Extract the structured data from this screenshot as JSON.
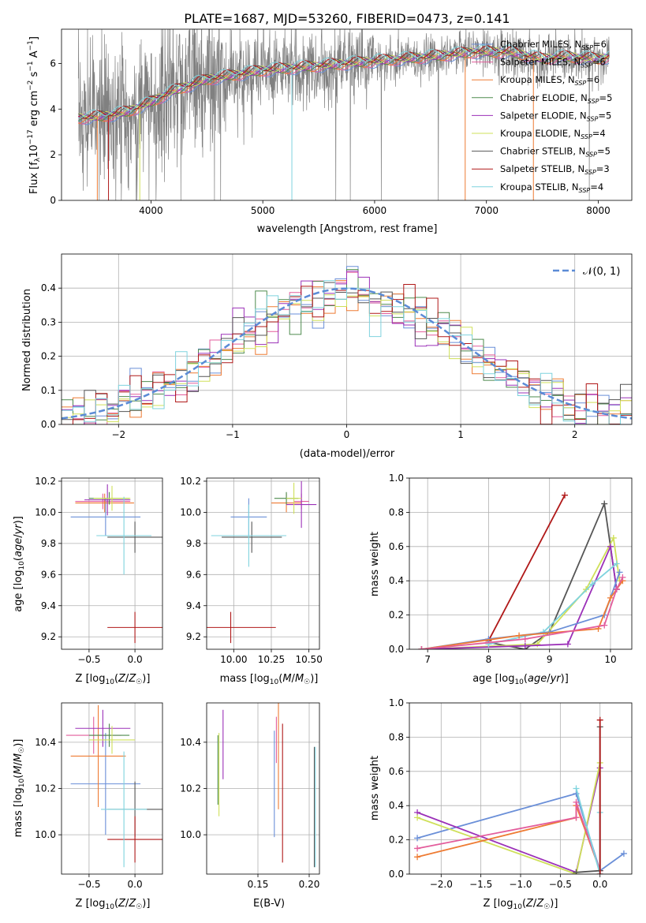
{
  "title": "PLATE=1687, MJD=53260, FIBERID=0473, z=0.141",
  "colors": {
    "Chabrier MILES": "#6a8fd8",
    "Salpeter MILES": "#e35d9c",
    "Kroupa MILES": "#ee7b33",
    "Chabrier ELODIE": "#4e8b4e",
    "Salpeter ELODIE": "#9b30b8",
    "Kroupa ELODIE": "#cfe05a",
    "Chabrier STELIB": "#555555",
    "Salpeter STELIB": "#b01818",
    "Kroupa STELIB": "#7fd3de",
    "data": "#808080",
    "normal": "#5b8bd6"
  },
  "chart_data": [
    {
      "type": "line",
      "name": "spectrum",
      "xlabel": "wavelength [Angstrom, rest frame]",
      "ylabel": "Flux [f_λ 10^-17 erg cm^-2 s^-1 A^-1]",
      "xlim": [
        3200,
        8300
      ],
      "ylim": [
        0,
        7.5
      ],
      "xticks": [
        "4000",
        "5000",
        "6000",
        "7000",
        "8000"
      ],
      "yticks": [
        "0",
        "2",
        "4",
        "6"
      ],
      "legend_position": "right",
      "series": [
        {
          "name": "Chabrier MILES, N_SSP=6"
        },
        {
          "name": "Salpeter MILES, N_SSP=6"
        },
        {
          "name": "Kroupa MILES, N_SSP=6"
        },
        {
          "name": "Chabrier ELODIE, N_SSP=5"
        },
        {
          "name": "Salpeter ELODIE, N_SSP=5"
        },
        {
          "name": "Kroupa ELODIE, N_SSP=4"
        },
        {
          "name": "Chabrier STELIB, N_SSP=5"
        },
        {
          "name": "Salpeter STELIB, N_SSP=3"
        },
        {
          "name": "Kroupa STELIB, N_SSP=4"
        }
      ],
      "continuum_x": [
        3350,
        3600,
        3800,
        4000,
        4200,
        4500,
        5000,
        5500,
        6000,
        6500,
        6900,
        7200,
        7500,
        7700,
        8000,
        8100
      ],
      "continuum_y": [
        3.6,
        3.7,
        3.9,
        4.3,
        4.8,
        5.3,
        5.7,
        5.9,
        6.1,
        6.3,
        6.5,
        6.5,
        6.2,
        6.3,
        6.2,
        6.3
      ]
    },
    {
      "type": "histogram",
      "name": "residuals",
      "xlabel": "(data-model)/error",
      "ylabel": "Normed distribution",
      "xlim": [
        -2.5,
        2.5
      ],
      "ylim": [
        0,
        0.5
      ],
      "xticks": [
        "−2",
        "−1",
        "0",
        "1",
        "2"
      ],
      "yticks": [
        "0.0",
        "0.1",
        "0.2",
        "0.3",
        "0.4"
      ],
      "legend": [
        "𝒩(0, 1)"
      ],
      "bin_width": 0.1
    },
    {
      "type": "scatter",
      "name": "age-vs-Z",
      "xlabel": "Z [log10(Z/Z☉)]",
      "ylabel": "age  [log10(age/yr)]",
      "xlim": [
        -0.8,
        0.3
      ],
      "ylim": [
        9.12,
        10.22
      ],
      "xticks": [
        "−0.5",
        "0.0"
      ],
      "yticks": [
        "9.2",
        "9.4",
        "9.6",
        "9.8",
        "10.0",
        "10.2"
      ],
      "points": [
        {
          "model": "Chabrier MILES",
          "x": -0.32,
          "xerr": 0.38,
          "y": 9.97,
          "yerr": 0.12
        },
        {
          "model": "Salpeter MILES",
          "x": -0.35,
          "xerr": 0.3,
          "y": 10.07,
          "yerr": 0.05
        },
        {
          "model": "Kroupa MILES",
          "x": -0.33,
          "xerr": 0.32,
          "y": 10.06,
          "yerr": 0.06
        },
        {
          "model": "Chabrier ELODIE",
          "x": -0.28,
          "xerr": 0.22,
          "y": 10.09,
          "yerr": 0.04
        },
        {
          "model": "Salpeter ELODIE",
          "x": -0.3,
          "xerr": 0.25,
          "y": 10.08,
          "yerr": 0.1
        },
        {
          "model": "Kroupa ELODIE",
          "x": -0.25,
          "xerr": 0.2,
          "y": 10.09,
          "yerr": 0.08
        },
        {
          "model": "Chabrier STELIB",
          "x": 0.0,
          "xerr": 0.3,
          "y": 9.84,
          "yerr": 0.1
        },
        {
          "model": "Salpeter STELIB",
          "x": 0.0,
          "xerr": 0.3,
          "y": 9.26,
          "yerr": 0.1
        },
        {
          "model": "Kroupa STELIB",
          "x": -0.12,
          "xerr": 0.3,
          "y": 9.85,
          "yerr": 0.25
        }
      ]
    },
    {
      "type": "scatter",
      "name": "age-vs-mass",
      "xlabel": "mass [log10(M/M☉)]",
      "ylabel": "",
      "xlim": [
        9.82,
        10.57
      ],
      "ylim": [
        9.12,
        10.22
      ],
      "xticks": [
        "10.00",
        "10.25",
        "10.50"
      ],
      "yticks": [
        "9.2",
        "9.4",
        "9.6",
        "9.8",
        "10.0",
        "10.2"
      ],
      "points": [
        {
          "model": "Chabrier MILES",
          "x": 10.1,
          "xerr": 0.12,
          "y": 9.97,
          "yerr": 0.12
        },
        {
          "model": "Salpeter MILES",
          "x": 10.45,
          "xerr": 0.05,
          "y": 10.07,
          "yerr": 0.05
        },
        {
          "model": "Kroupa MILES",
          "x": 10.35,
          "xerr": 0.1,
          "y": 10.06,
          "yerr": 0.06
        },
        {
          "model": "Chabrier ELODIE",
          "x": 10.35,
          "xerr": 0.08,
          "y": 10.09,
          "yerr": 0.04
        },
        {
          "model": "Salpeter ELODIE",
          "x": 10.45,
          "xerr": 0.1,
          "y": 10.05,
          "yerr": 0.15
        },
        {
          "model": "Kroupa ELODIE",
          "x": 10.4,
          "xerr": 0.05,
          "y": 10.09,
          "yerr": 0.1
        },
        {
          "model": "Chabrier STELIB",
          "x": 10.12,
          "xerr": 0.2,
          "y": 9.84,
          "yerr": 0.1
        },
        {
          "model": "Salpeter STELIB",
          "x": 9.98,
          "xerr": 0.3,
          "y": 9.26,
          "yerr": 0.1
        },
        {
          "model": "Kroupa STELIB",
          "x": 10.1,
          "xerr": 0.25,
          "y": 9.85,
          "yerr": 0.2
        }
      ]
    },
    {
      "type": "line",
      "name": "mass-weight-vs-age",
      "xlabel": "age  [log10(age/yr)]",
      "ylabel": "mass weight",
      "xlim": [
        6.7,
        10.35
      ],
      "ylim": [
        0,
        1.0
      ],
      "xticks": [
        "7",
        "8",
        "9",
        "10"
      ],
      "yticks": [
        "0.0",
        "0.2",
        "0.4",
        "0.6",
        "0.8",
        "1.0"
      ],
      "series": [
        {
          "name": "Salpeter STELIB",
          "x": [
            8.0,
            9.25
          ],
          "y": [
            0.05,
            0.9
          ]
        },
        {
          "name": "Chabrier STELIB",
          "x": [
            8.0,
            8.6,
            9.0,
            9.9,
            10.1
          ],
          "y": [
            0.04,
            0.0,
            0.1,
            0.85,
            0.35
          ]
        },
        {
          "name": "Kroupa ELODIE",
          "x": [
            6.9,
            8.8,
            9.6,
            10.05,
            10.15
          ],
          "y": [
            0.0,
            0.03,
            0.35,
            0.65,
            0.4
          ]
        },
        {
          "name": "Salpeter ELODIE",
          "x": [
            6.9,
            8.6,
            9.3,
            10.0,
            10.1
          ],
          "y": [
            0.0,
            0.02,
            0.03,
            0.6,
            0.35
          ]
        },
        {
          "name": "Kroupa STELIB",
          "x": [
            8.0,
            8.9,
            9.7,
            10.1
          ],
          "y": [
            0.03,
            0.1,
            0.38,
            0.5
          ]
        },
        {
          "name": "Chabrier MILES",
          "x": [
            6.9,
            8.0,
            9.0,
            9.9,
            10.15
          ],
          "y": [
            0.0,
            0.06,
            0.1,
            0.2,
            0.45
          ]
        },
        {
          "name": "Kroupa MILES",
          "x": [
            6.9,
            8.5,
            9.8,
            10.0,
            10.2
          ],
          "y": [
            0.0,
            0.08,
            0.12,
            0.3,
            0.4
          ]
        },
        {
          "name": "Salpeter MILES",
          "x": [
            6.9,
            8.6,
            9.9,
            10.1,
            10.2
          ],
          "y": [
            0.0,
            0.06,
            0.14,
            0.35,
            0.42
          ]
        }
      ]
    },
    {
      "type": "scatter",
      "name": "mass-vs-Z",
      "xlabel": "Z [log10(Z/Z☉)]",
      "ylabel": "mass [log10(M/M☉)]",
      "xlim": [
        -0.8,
        0.3
      ],
      "ylim": [
        9.83,
        10.57
      ],
      "xticks": [
        "−0.5",
        "0.0"
      ],
      "yticks": [
        "10.0",
        "10.2",
        "10.4"
      ],
      "points": [
        {
          "model": "Chabrier MILES",
          "x": -0.32,
          "xerr": 0.38,
          "y": 10.22,
          "yerr": 0.22
        },
        {
          "model": "Salpeter MILES",
          "x": -0.45,
          "xerr": 0.3,
          "y": 10.43,
          "yerr": 0.08
        },
        {
          "model": "Kroupa MILES",
          "x": -0.4,
          "xerr": 0.3,
          "y": 10.34,
          "yerr": 0.22
        },
        {
          "model": "Chabrier ELODIE",
          "x": -0.28,
          "xerr": 0.22,
          "y": 10.43,
          "yerr": 0.05
        },
        {
          "model": "Salpeter ELODIE",
          "x": -0.35,
          "xerr": 0.3,
          "y": 10.46,
          "yerr": 0.08
        },
        {
          "model": "Kroupa ELODIE",
          "x": -0.25,
          "xerr": 0.25,
          "y": 10.41,
          "yerr": 0.06
        },
        {
          "model": "Chabrier STELIB",
          "x": 0.0,
          "xerr": 0.3,
          "y": 10.11,
          "yerr": 0.12
        },
        {
          "model": "Salpeter STELIB",
          "x": 0.0,
          "xerr": 0.3,
          "y": 9.98,
          "yerr": 0.1
        },
        {
          "model": "Kroupa STELIB",
          "x": -0.12,
          "xerr": 0.25,
          "y": 10.11,
          "yerr": 0.25
        }
      ]
    },
    {
      "type": "scatter",
      "name": "mass-vs-EBV",
      "xlabel": "E(B-V)",
      "ylabel": "",
      "xlim": [
        0.1,
        0.21
      ],
      "ylim": [
        9.83,
        10.57
      ],
      "xticks": [
        "0.15",
        "0.20"
      ],
      "yticks": [
        "10.0",
        "10.2",
        "10.4"
      ],
      "points": [
        {
          "model": "Chabrier ELODIE",
          "x": 0.111,
          "yerr": 0.15,
          "y": 10.28
        },
        {
          "model": "Kroupa ELODIE",
          "x": 0.112,
          "yerr": 0.18,
          "y": 10.26
        },
        {
          "model": "Salpeter ELODIE",
          "x": 0.116,
          "yerr": 0.15,
          "y": 10.39
        },
        {
          "model": "Chabrier MILES",
          "x": 0.166,
          "yerr": 0.23,
          "y": 10.22
        },
        {
          "model": "Salpeter MILES",
          "x": 0.168,
          "yerr": 0.1,
          "y": 10.41
        },
        {
          "model": "Kroupa MILES",
          "x": 0.17,
          "yerr": 0.23,
          "y": 10.34
        },
        {
          "model": "Salpeter STELIB",
          "x": 0.174,
          "yerr": 0.3,
          "y": 10.18
        },
        {
          "model": "Chabrier STELIB",
          "x": 0.205,
          "yerr": 0.26,
          "y": 10.12
        },
        {
          "model": "Kroupa STELIB",
          "x": 0.206,
          "yerr": 0.26,
          "y": 10.12
        }
      ]
    },
    {
      "type": "line",
      "name": "mass-weight-vs-Z",
      "xlabel": "Z [log10(Z/Z☉)]",
      "ylabel": "mass weight",
      "xlim": [
        -2.4,
        0.4
      ],
      "ylim": [
        0,
        1.0
      ],
      "xticks": [
        "−2.0",
        "−1.5",
        "−1.0",
        "−0.5",
        "0.0"
      ],
      "yticks": [
        "0.0",
        "0.2",
        "0.4",
        "0.6",
        "0.8",
        "1.0"
      ],
      "series": [
        {
          "name": "Chabrier MILES",
          "x": [
            -2.3,
            -0.3,
            0.0,
            0.3
          ],
          "y": [
            0.21,
            0.47,
            0.02,
            0.12
          ]
        },
        {
          "name": "Salpeter ELODIE",
          "x": [
            -2.3,
            -0.3,
            0.0
          ],
          "y": [
            0.36,
            0.01,
            0.62
          ]
        },
        {
          "name": "Kroupa ELODIE",
          "x": [
            -2.3,
            -0.3,
            0.0
          ],
          "y": [
            0.33,
            0.0,
            0.65
          ]
        },
        {
          "name": "Kroupa MILES",
          "x": [
            -2.3,
            -0.3,
            -0.3,
            0.0
          ],
          "y": [
            0.1,
            0.33,
            0.4,
            0.02
          ]
        },
        {
          "name": "Salpeter MILES",
          "x": [
            -2.3,
            -0.3,
            -0.3,
            0.0
          ],
          "y": [
            0.15,
            0.33,
            0.42,
            0.02
          ]
        },
        {
          "name": "Kroupa STELIB",
          "x": [
            -0.3,
            0.0,
            0.0
          ],
          "y": [
            0.5,
            0.0,
            0.36
          ]
        },
        {
          "name": "Chabrier STELIB",
          "x": [
            -0.3,
            0.0,
            0.0
          ],
          "y": [
            0.01,
            0.02,
            0.86
          ]
        },
        {
          "name": "Salpeter STELIB",
          "x": [
            0.0,
            0.0
          ],
          "y": [
            0.9,
            0.0
          ]
        }
      ]
    }
  ]
}
